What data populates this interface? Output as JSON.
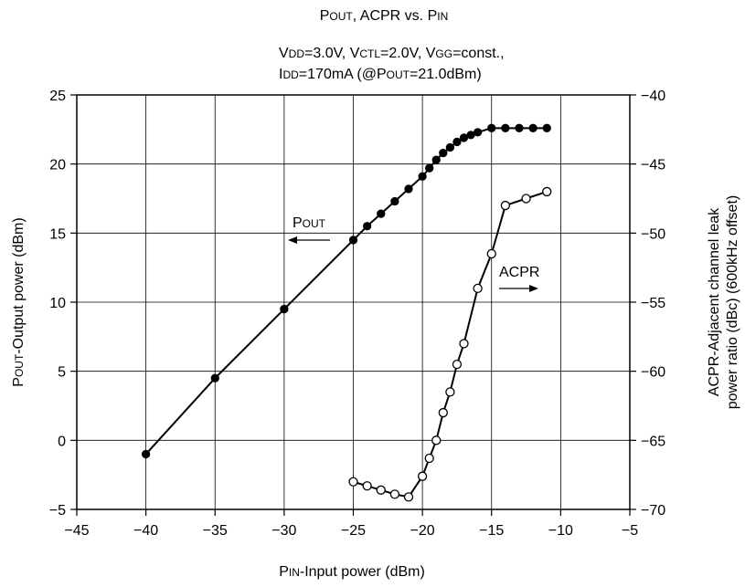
{
  "chart_data": {
    "type": "line",
    "title": {
      "p1": "P",
      "s1": "OUT",
      "p2": ", ACPR vs. P",
      "s2": "IN"
    },
    "subtitle_line1": {
      "p1": "V",
      "s1": "DD",
      "p2": "=3.0V, V",
      "s2": "CTL",
      "p3": "=2.0V, V",
      "s3": "GG",
      "p4": "=const.,"
    },
    "subtitle_line2": {
      "p1": "I",
      "s1": "DD",
      "p2": "=170mA (@P",
      "s2": "OUT",
      "p3": "=21.0dBm)"
    },
    "xlabel": {
      "p1": "P",
      "s1": "IN",
      "p2": "-Input power (dBm)"
    },
    "ylabel_left": {
      "p1": "P",
      "s1": "OUT",
      "p2": "-Output power (dBm)"
    },
    "ylabel_right": {
      "line1": "ACPR-Adjacent channel leak",
      "line2": "power ratio (dBc) (600kHz offset)"
    },
    "xlim": [
      -45,
      -5
    ],
    "ylim_left": [
      -5,
      25
    ],
    "ylim_right": [
      -70,
      -40
    ],
    "x_ticks": [
      -45,
      -40,
      -35,
      -30,
      -25,
      -20,
      -15,
      -10,
      -5
    ],
    "x_tick_labels": [
      "−45",
      "−40",
      "−35",
      "−30",
      "−25",
      "−20",
      "−15",
      "−10",
      "−5"
    ],
    "y_left_ticks": [
      -5,
      0,
      5,
      10,
      15,
      20,
      25
    ],
    "y_left_tick_labels": [
      "−5",
      "0",
      "5",
      "10",
      "15",
      "20",
      "25"
    ],
    "y_right_ticks": [
      -70,
      -65,
      -60,
      -55,
      -50,
      -45,
      -40
    ],
    "y_right_tick_labels": [
      "−70",
      "−65",
      "−60",
      "−55",
      "−50",
      "−45",
      "−40"
    ],
    "grid": true,
    "series": [
      {
        "name": "POUT",
        "axis": "left",
        "marker": "filled-circle",
        "x": [
          -40,
          -35,
          -30,
          -25,
          -24,
          -23,
          -22,
          -21,
          -20,
          -19.5,
          -19,
          -18.5,
          -18,
          -17.5,
          -17,
          -16.5,
          -16,
          -15,
          -14,
          -13,
          -12,
          -11
        ],
        "y": [
          -1,
          4.5,
          9.5,
          14.5,
          15.5,
          16.4,
          17.3,
          18.2,
          19.1,
          19.7,
          20.3,
          20.8,
          21.2,
          21.6,
          21.9,
          22.1,
          22.3,
          22.6,
          22.6,
          22.6,
          22.6,
          22.6
        ]
      },
      {
        "name": "ACPR",
        "axis": "right",
        "marker": "open-circle",
        "x": [
          -25,
          -24,
          -23,
          -22,
          -21,
          -20,
          -19.5,
          -19,
          -18.5,
          -18,
          -17.5,
          -17,
          -16,
          -15,
          -14,
          -12.5,
          -11
        ],
        "y": [
          -68,
          -68.3,
          -68.6,
          -68.9,
          -69.1,
          -67.6,
          -66.3,
          -65,
          -63,
          -61.5,
          -59.5,
          -58,
          -54,
          -51.5,
          -48,
          -47.5,
          -47
        ]
      }
    ],
    "annotations": [
      {
        "text": "POUT",
        "p1": "P",
        "s1": "OUT",
        "arrow": "left"
      },
      {
        "text": "ACPR",
        "arrow": "right"
      }
    ]
  }
}
